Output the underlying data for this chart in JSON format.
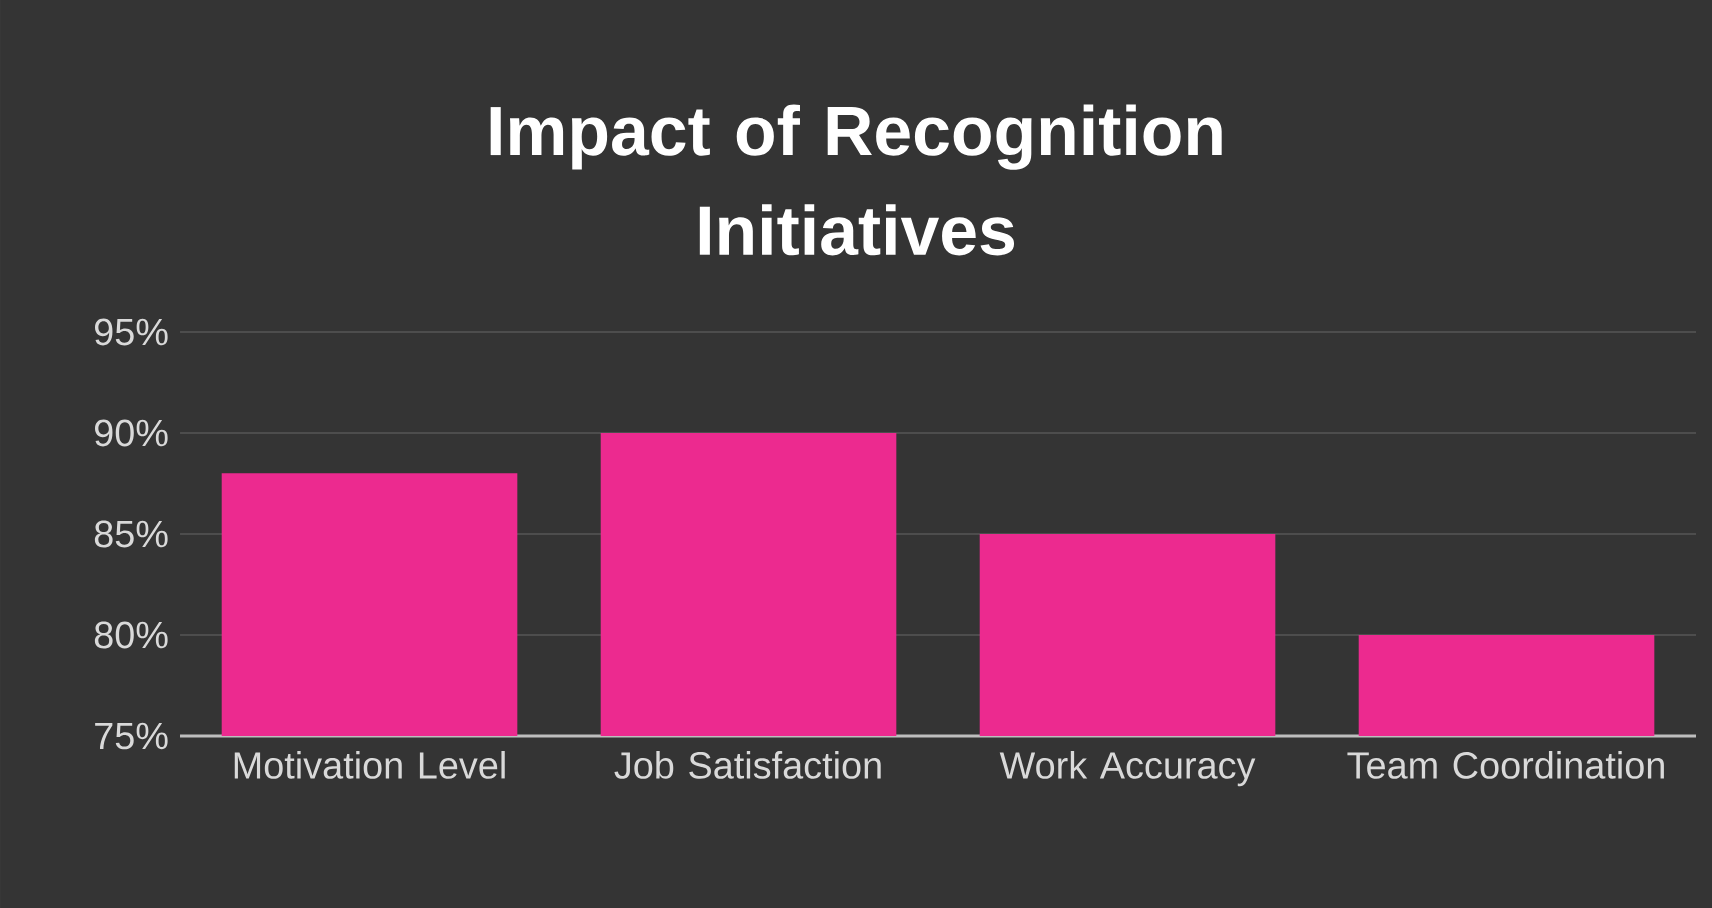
{
  "chart_data": {
    "type": "bar",
    "title": "Impact of Recognition Initiatives",
    "categories": [
      "Motivation Level",
      "Job Satisfaction",
      "Work Accuracy",
      "Team Coordination"
    ],
    "values": [
      88,
      90,
      85,
      80
    ],
    "color": "#ec2a8f",
    "ylim": [
      75,
      95
    ],
    "yticks": [
      {
        "value": 75,
        "label": "75%"
      },
      {
        "value": 80,
        "label": "80%"
      },
      {
        "value": 85,
        "label": "85%"
      },
      {
        "value": 90,
        "label": "90%"
      },
      {
        "value": 95,
        "label": "95%"
      }
    ],
    "grid": "y"
  }
}
